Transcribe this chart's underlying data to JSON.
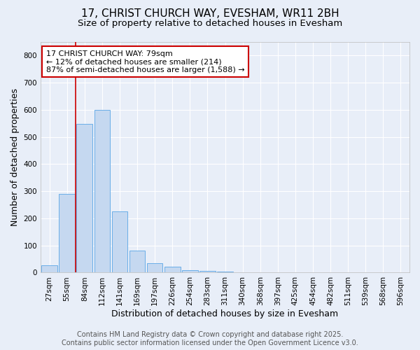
{
  "title": "17, CHRIST CHURCH WAY, EVESHAM, WR11 2BH",
  "subtitle": "Size of property relative to detached houses in Evesham",
  "xlabel": "Distribution of detached houses by size in Evesham",
  "ylabel": "Number of detached properties",
  "categories": [
    "27sqm",
    "55sqm",
    "84sqm",
    "112sqm",
    "141sqm",
    "169sqm",
    "197sqm",
    "226sqm",
    "254sqm",
    "283sqm",
    "311sqm",
    "340sqm",
    "368sqm",
    "397sqm",
    "425sqm",
    "454sqm",
    "482sqm",
    "511sqm",
    "539sqm",
    "568sqm",
    "596sqm"
  ],
  "values": [
    27,
    291,
    547,
    600,
    225,
    80,
    36,
    22,
    10,
    7,
    5,
    0,
    0,
    0,
    0,
    0,
    0,
    0,
    0,
    0,
    0
  ],
  "bar_color": "#c5d8f0",
  "bar_edge_color": "#6aaee8",
  "vline_color": "#cc0000",
  "annotation_text": "17 CHRIST CHURCH WAY: 79sqm\n← 12% of detached houses are smaller (214)\n87% of semi-detached houses are larger (1,588) →",
  "annotation_box_color": "white",
  "annotation_box_edge_color": "#cc0000",
  "ylim": [
    0,
    850
  ],
  "yticks": [
    0,
    100,
    200,
    300,
    400,
    500,
    600,
    700,
    800
  ],
  "footer_line1": "Contains HM Land Registry data © Crown copyright and database right 2025.",
  "footer_line2": "Contains public sector information licensed under the Open Government Licence v3.0.",
  "bg_color": "#e8eef8",
  "plot_bg_color": "#e8eef8",
  "grid_color": "white",
  "title_fontsize": 11,
  "subtitle_fontsize": 9.5,
  "axis_label_fontsize": 9,
  "tick_fontsize": 7.5,
  "annotation_fontsize": 8,
  "footer_fontsize": 7
}
